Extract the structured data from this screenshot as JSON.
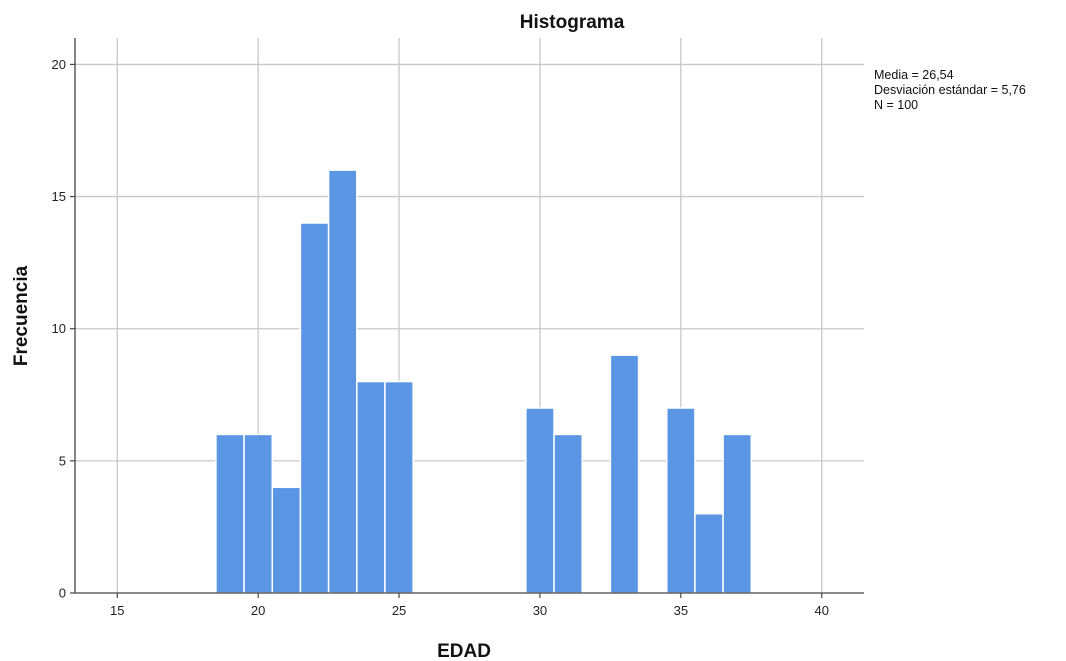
{
  "chart_data": {
    "type": "bar",
    "title": "Histograma",
    "xlabel": "EDAD",
    "ylabel": "Frecuencia",
    "xlim": [
      13.5,
      41.5
    ],
    "ylim": [
      0,
      21
    ],
    "x_ticks": [
      15,
      20,
      25,
      30,
      35,
      40
    ],
    "y_ticks": [
      0,
      5,
      10,
      15,
      20
    ],
    "grid": true,
    "bin_width": 1,
    "bins": [
      {
        "x": 19,
        "value": 6
      },
      {
        "x": 20,
        "value": 6
      },
      {
        "x": 21,
        "value": 4
      },
      {
        "x": 22,
        "value": 14
      },
      {
        "x": 23,
        "value": 16
      },
      {
        "x": 24,
        "value": 8
      },
      {
        "x": 25,
        "value": 8
      },
      {
        "x": 30,
        "value": 7
      },
      {
        "x": 31,
        "value": 6
      },
      {
        "x": 33,
        "value": 9
      },
      {
        "x": 35,
        "value": 7
      },
      {
        "x": 36,
        "value": 3
      },
      {
        "x": 37,
        "value": 6
      }
    ],
    "bar_color": "#5b96e4",
    "stats": {
      "media": "Media = 26,54",
      "desviacion": "Desviación estándar = 5,76",
      "n": "N = 100"
    }
  }
}
